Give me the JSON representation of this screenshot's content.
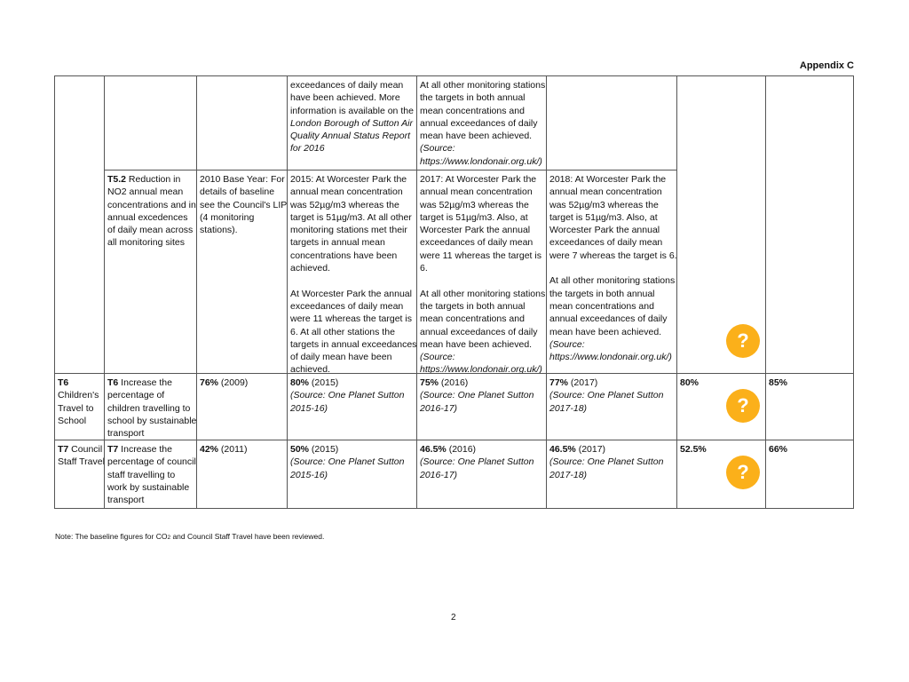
{
  "header": {
    "appendix": "Appendix C"
  },
  "table": {
    "rows": [
      {
        "c3": [
          [
            {
              "t": "exceedances of daily mean"
            }
          ],
          [
            {
              "t": "have been achieved. More"
            }
          ],
          [
            {
              "t": "information is available on the"
            }
          ],
          [
            {
              "t": "London Borough of Sutton Air",
              "s": "i"
            }
          ],
          [
            {
              "t": "Quality Annual Status Report",
              "s": "i"
            }
          ],
          [
            {
              "t": "for 2016",
              "s": "i"
            }
          ]
        ],
        "c4": [
          [
            {
              "t": "At all other monitoring stations"
            }
          ],
          [
            {
              "t": "the targets in both annual"
            }
          ],
          [
            {
              "t": "mean concentrations and"
            }
          ],
          [
            {
              "t": "annual exceedances of daily"
            }
          ],
          [
            {
              "t": "mean have been achieved."
            }
          ],
          [
            {
              "t": "(Source:",
              "s": "i"
            }
          ],
          [
            {
              "t": "https://www.londonair.org.uk/)",
              "s": "i"
            }
          ]
        ]
      },
      {
        "c1": [
          [
            {
              "t": "T5.2",
              "s": "b"
            },
            {
              "t": " Reduction in"
            }
          ],
          [
            {
              "t": "NO2 annual mean"
            }
          ],
          [
            {
              "t": "concentrations and in"
            }
          ],
          [
            {
              "t": "annual excedences"
            }
          ],
          [
            {
              "t": "of daily mean across"
            }
          ],
          [
            {
              "t": "all monitoring sites"
            }
          ]
        ],
        "c2": [
          [
            {
              "t": "2010 Base Year: For"
            }
          ],
          [
            {
              "t": "details of baseline"
            }
          ],
          [
            {
              "t": "see the Council's LIP"
            }
          ],
          [
            {
              "t": "(4 monitoring"
            }
          ],
          [
            {
              "t": "stations)."
            }
          ]
        ],
        "c3": [
          [
            {
              "t": "2015: At Worcester Park the"
            }
          ],
          [
            {
              "t": "annual mean concentration"
            }
          ],
          [
            {
              "t": "was 52µg/m3 whereas the"
            }
          ],
          [
            {
              "t": "target is 51µg/m3. At all other"
            }
          ],
          [
            {
              "t": "monitoring stations met their"
            }
          ],
          [
            {
              "t": "targets in annual mean"
            }
          ],
          [
            {
              "t": "concentrations have been"
            }
          ],
          [
            {
              "t": "achieved."
            }
          ],
          [],
          [
            {
              "t": "At Worcester Park the annual"
            }
          ],
          [
            {
              "t": "exceedances of daily mean"
            }
          ],
          [
            {
              "t": "were 11 whereas the target is"
            }
          ],
          [
            {
              "t": "6. At all other stations the"
            }
          ],
          [
            {
              "t": "targets in annual exceedances"
            }
          ],
          [
            {
              "t": "of daily mean have been"
            }
          ],
          [
            {
              "t": "achieved."
            }
          ]
        ],
        "c4": [
          [
            {
              "t": "2017: At Worcester Park the"
            }
          ],
          [
            {
              "t": "annual mean concentration"
            }
          ],
          [
            {
              "t": "was 52µg/m3 whereas the"
            }
          ],
          [
            {
              "t": "target is 51µg/m3. Also, at"
            }
          ],
          [
            {
              "t": "Worcester Park the annual"
            }
          ],
          [
            {
              "t": "exceedances of daily mean"
            }
          ],
          [
            {
              "t": "were 11 whereas the target is"
            }
          ],
          [
            {
              "t": "6."
            }
          ],
          [],
          [
            {
              "t": "At all other monitoring stations"
            }
          ],
          [
            {
              "t": "the targets in both annual"
            }
          ],
          [
            {
              "t": "mean concentrations and"
            }
          ],
          [
            {
              "t": "annual exceedances of daily"
            }
          ],
          [
            {
              "t": "mean have been achieved."
            }
          ],
          [
            {
              "t": "(Source:",
              "s": "i"
            }
          ],
          [
            {
              "t": "https://www.londonair.org.uk/)",
              "s": "i"
            }
          ]
        ],
        "c5": [
          [
            {
              "t": "2018: At Worcester Park the"
            }
          ],
          [
            {
              "t": "annual mean concentration"
            }
          ],
          [
            {
              "t": "was 52µg/m3 whereas the"
            }
          ],
          [
            {
              "t": "target is 51µg/m3. Also, at"
            }
          ],
          [
            {
              "t": "Worcester Park the annual"
            }
          ],
          [
            {
              "t": "exceedances of daily mean"
            }
          ],
          [
            {
              "t": "were 7 whereas the target is 6."
            }
          ],
          [],
          [
            {
              "t": "At all other monitoring stations"
            }
          ],
          [
            {
              "t": "the targets in both annual"
            }
          ],
          [
            {
              "t": "mean concentrations and"
            }
          ],
          [
            {
              "t": "annual exceedances of daily"
            }
          ],
          [
            {
              "t": "mean have been achieved."
            }
          ],
          [
            {
              "t": "(Source:",
              "s": "i"
            }
          ],
          [
            {
              "t": "https://www.londonair.org.uk/)",
              "s": "i"
            }
          ]
        ]
      },
      {
        "c0": [
          [
            {
              "t": "T6",
              "s": "b"
            }
          ],
          [
            {
              "t": "Children's"
            }
          ],
          [
            {
              "t": "Travel to"
            }
          ],
          [
            {
              "t": "School"
            }
          ]
        ],
        "c1": [
          [
            {
              "t": "T6",
              "s": "b"
            },
            {
              "t": " Increase the"
            }
          ],
          [
            {
              "t": "percentage of"
            }
          ],
          [
            {
              "t": "children travelling to"
            }
          ],
          [
            {
              "t": "school by sustainable"
            }
          ],
          [
            {
              "t": "transport"
            }
          ]
        ],
        "c2": [
          [
            {
              "t": "76%",
              "s": "b"
            },
            {
              "t": " (2009)"
            }
          ]
        ],
        "c3": [
          [
            {
              "t": "80%",
              "s": "b"
            },
            {
              "t": " (2015)"
            }
          ],
          [
            {
              "t": "(Source: One Planet Sutton",
              "s": "i"
            }
          ],
          [
            {
              "t": "2015-16)",
              "s": "i"
            }
          ]
        ],
        "c4": [
          [
            {
              "t": "75%",
              "s": "b"
            },
            {
              "t": " (2016)"
            }
          ],
          [
            {
              "t": "(Source: One Planet Sutton",
              "s": "i"
            }
          ],
          [
            {
              "t": "2016-17)",
              "s": "i"
            }
          ]
        ],
        "c5": [
          [
            {
              "t": "77%",
              "s": "b"
            },
            {
              "t": " (2017)"
            }
          ],
          [
            {
              "t": "(Source: One Planet Sutton",
              "s": "i"
            }
          ],
          [
            {
              "t": "2017-18)",
              "s": "i"
            }
          ]
        ],
        "c6": [
          [
            {
              "t": "80%",
              "s": "b"
            }
          ]
        ],
        "c7": [
          [
            {
              "t": "85%",
              "s": "b"
            }
          ]
        ]
      },
      {
        "c0": [
          [
            {
              "t": "T7",
              "s": "b"
            },
            {
              "t": " Council"
            }
          ],
          [
            {
              "t": "Staff Travel"
            }
          ]
        ],
        "c1": [
          [
            {
              "t": "T7",
              "s": "b"
            },
            {
              "t": " Increase the"
            }
          ],
          [
            {
              "t": "percentage of council"
            }
          ],
          [
            {
              "t": "staff travelling to"
            }
          ],
          [
            {
              "t": "work by sustainable"
            }
          ],
          [
            {
              "t": "transport"
            }
          ]
        ],
        "c2": [
          [
            {
              "t": "42%",
              "s": "b"
            },
            {
              "t": " (2011)"
            }
          ]
        ],
        "c3": [
          [
            {
              "t": "50%",
              "s": "b"
            },
            {
              "t": " (2015)"
            }
          ],
          [
            {
              "t": "(Source: One Planet Sutton",
              "s": "i"
            }
          ],
          [
            {
              "t": "2015-16)",
              "s": "i"
            }
          ]
        ],
        "c4": [
          [
            {
              "t": "46.5%",
              "s": "b"
            },
            {
              "t": " (2016)"
            }
          ],
          [
            {
              "t": "(Source: One Planet Sutton",
              "s": "i"
            }
          ],
          [
            {
              "t": "2016-17)",
              "s": "i"
            }
          ]
        ],
        "c5": [
          [
            {
              "t": "46.5%",
              "s": "b"
            },
            {
              "t": " (2017)"
            }
          ],
          [
            {
              "t": "(Source: One Planet Sutton",
              "s": "i"
            }
          ],
          [
            {
              "t": "2017-18)",
              "s": "i"
            }
          ]
        ],
        "c6": [
          [
            {
              "t": "52.5%",
              "s": "b"
            }
          ]
        ],
        "c7": [
          [
            {
              "t": "66%",
              "s": "b"
            }
          ]
        ]
      }
    ]
  },
  "status_icons": {
    "glyph": "?",
    "name": "question-icon",
    "color": "#fbb01a"
  },
  "note": {
    "prefix": "Note: The baseline figures for CO",
    "sub": "2",
    "suffix": " and Council Staff Travel have been reviewed."
  },
  "footer": {
    "page_number": "2"
  }
}
